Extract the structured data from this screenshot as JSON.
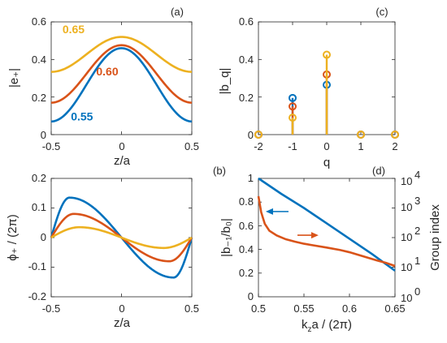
{
  "colors": {
    "blue": "#0072BD",
    "orange": "#D95319",
    "yellow": "#EDB120",
    "axis": "#262626"
  },
  "chart_data": [
    {
      "id": "a",
      "type": "line",
      "panel_label": "(a)",
      "xlabel": "z/a",
      "ylabel": "|e₊|",
      "xlim": [
        -0.5,
        0.5
      ],
      "ylim": [
        0,
        0.6
      ],
      "xticks": [
        -0.5,
        0,
        0.5
      ],
      "xtick_labels": [
        "-0.5",
        "0",
        "0.5"
      ],
      "yticks": [
        0,
        0.2,
        0.4,
        0.6
      ],
      "ytick_labels": [
        "0",
        "0.2",
        "0.4",
        "0.6"
      ],
      "series": [
        {
          "name": "0.65",
          "color": "yellow",
          "label": "0.65",
          "label_at": [
            -0.42,
            0.54
          ],
          "mean": 0.427,
          "amp": 0.093
        },
        {
          "name": "0.60",
          "color": "orange",
          "label": "0.60",
          "label_at": [
            -0.18,
            0.315
          ],
          "mean": 0.323,
          "amp": 0.153
        },
        {
          "name": "0.55",
          "color": "blue",
          "label": "0.55",
          "label_at": [
            -0.36,
            0.075
          ],
          "mean": 0.265,
          "amp": 0.195
        }
      ]
    },
    {
      "id": "b",
      "type": "line",
      "panel_label": "(b)",
      "xlabel": "z/a",
      "ylabel": "ϕ₊ / (2π)",
      "xlim": [
        -0.5,
        0.5
      ],
      "ylim": [
        -0.2,
        0.2
      ],
      "xticks": [
        -0.5,
        0,
        0.5
      ],
      "xtick_labels": [
        "-0.5",
        "0",
        "0.5"
      ],
      "yticks": [
        -0.2,
        -0.1,
        0,
        0.1,
        0.2
      ],
      "ytick_labels": [
        "-0.2",
        "-0.1",
        "0",
        "0.1",
        "0.2"
      ],
      "series": [
        {
          "name": "0.55",
          "color": "blue",
          "amp": 0.135,
          "z_peak": 0.37
        },
        {
          "name": "0.60",
          "color": "orange",
          "amp": 0.08,
          "z_peak": 0.34
        },
        {
          "name": "0.65",
          "color": "yellow",
          "amp": 0.035,
          "z_peak": 0.3
        }
      ]
    },
    {
      "id": "c",
      "type": "stem",
      "panel_label": "(c)",
      "xlabel": "q",
      "ylabel": "|b_q|",
      "xlim": [
        -2,
        2
      ],
      "ylim": [
        0,
        0.6
      ],
      "xticks": [
        -2,
        -1,
        0,
        1,
        2
      ],
      "xtick_labels": [
        "-2",
        "-1",
        "0",
        "1",
        "2"
      ],
      "yticks": [
        0,
        0.2,
        0.4,
        0.6
      ],
      "ytick_labels": [
        "0",
        "0.2",
        "0.4",
        "0.6"
      ],
      "q": [
        -2,
        -1,
        0,
        1,
        2
      ],
      "series": [
        {
          "name": "0.55",
          "color": "blue",
          "values": [
            0,
            0.195,
            0.265,
            0,
            0
          ]
        },
        {
          "name": "0.60",
          "color": "orange",
          "values": [
            0,
            0.15,
            0.32,
            0,
            0
          ]
        },
        {
          "name": "0.65",
          "color": "yellow",
          "values": [
            0,
            0.09,
            0.425,
            0,
            0
          ]
        }
      ]
    },
    {
      "id": "d",
      "type": "line",
      "panel_label": "(d)",
      "xlabel": "k_z a / (2π)",
      "ylabel": "|b₋₁/b₀|",
      "ylabel_right": "Group index",
      "xlim": [
        0.5,
        0.65
      ],
      "ylim": [
        0,
        1
      ],
      "ylim_right_log": [
        1,
        10000
      ],
      "xticks": [
        0.5,
        0.55,
        0.6,
        0.65
      ],
      "xtick_labels": [
        "0.5",
        "0.55",
        "0.6",
        "0.65"
      ],
      "yticks": [
        0,
        0.2,
        0.4,
        0.6,
        0.8,
        1
      ],
      "ytick_labels": [
        "0",
        "0.2",
        "0.4",
        "0.6",
        "0.8",
        "1"
      ],
      "yticks_right": [
        "10^0",
        "10^1",
        "10^2",
        "10^3",
        "10^4"
      ],
      "series": [
        {
          "name": "|b-1/b0|",
          "color": "blue",
          "axis": "left",
          "x": [
            0.5,
            0.525,
            0.55,
            0.575,
            0.6,
            0.625,
            0.65
          ],
          "y": [
            1.0,
            0.87,
            0.75,
            0.62,
            0.49,
            0.36,
            0.22
          ]
        },
        {
          "name": "Group index",
          "color": "orange",
          "axis": "right",
          "x": [
            0.5,
            0.503,
            0.507,
            0.512,
            0.52,
            0.53,
            0.54,
            0.55,
            0.56,
            0.575,
            0.59,
            0.6,
            0.61,
            0.62,
            0.63,
            0.64,
            0.65
          ],
          "y": [
            2500,
            720,
            290,
            170,
            118,
            88,
            73,
            62,
            55,
            46,
            38,
            32,
            26,
            21,
            17,
            14,
            11
          ]
        }
      ]
    }
  ]
}
